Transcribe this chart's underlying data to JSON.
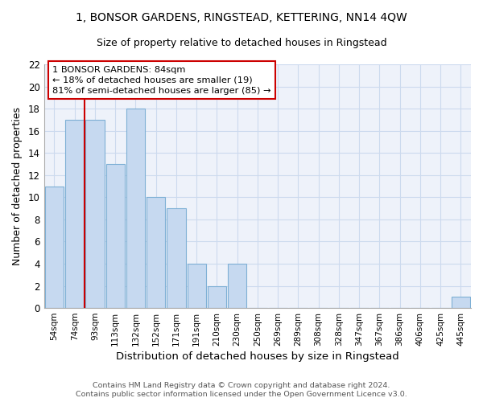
{
  "title": "1, BONSOR GARDENS, RINGSTEAD, KETTERING, NN14 4QW",
  "subtitle": "Size of property relative to detached houses in Ringstead",
  "xlabel": "Distribution of detached houses by size in Ringstead",
  "ylabel": "Number of detached properties",
  "bin_labels": [
    "54sqm",
    "74sqm",
    "93sqm",
    "113sqm",
    "132sqm",
    "152sqm",
    "171sqm",
    "191sqm",
    "210sqm",
    "230sqm",
    "250sqm",
    "269sqm",
    "289sqm",
    "308sqm",
    "328sqm",
    "347sqm",
    "367sqm",
    "386sqm",
    "406sqm",
    "425sqm",
    "445sqm"
  ],
  "bar_values": [
    11,
    17,
    17,
    13,
    18,
    10,
    9,
    4,
    2,
    4,
    0,
    0,
    0,
    0,
    0,
    0,
    0,
    0,
    0,
    0,
    1
  ],
  "bar_color": "#c6d9f0",
  "bar_edge_color": "#7eb0d5",
  "vline_x_index": 1.5,
  "vline_color": "#cc0000",
  "ylim": [
    0,
    22
  ],
  "yticks": [
    0,
    2,
    4,
    6,
    8,
    10,
    12,
    14,
    16,
    18,
    20,
    22
  ],
  "annotation_box_text": "1 BONSOR GARDENS: 84sqm\n← 18% of detached houses are smaller (19)\n81% of semi-detached houses are larger (85) →",
  "footer_line1": "Contains HM Land Registry data © Crown copyright and database right 2024.",
  "footer_line2": "Contains public sector information licensed under the Open Government Licence v3.0.",
  "grid_color": "#ccdaee",
  "background_color": "#eef2fa"
}
